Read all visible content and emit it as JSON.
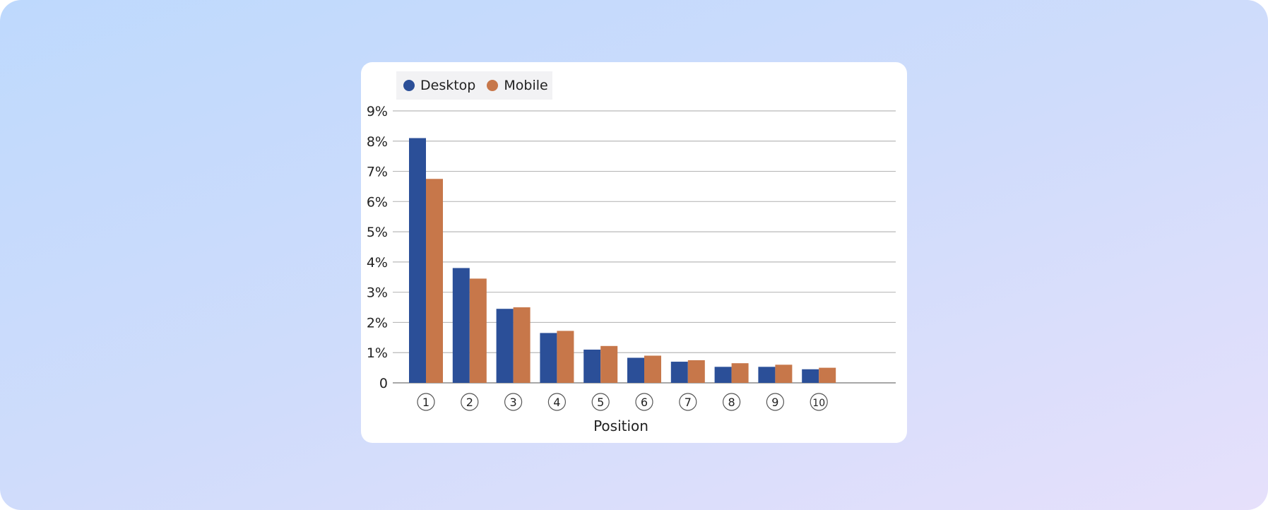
{
  "chart_data": {
    "type": "bar",
    "title": "",
    "xlabel": "Position",
    "ylabel": "",
    "categories": [
      "1",
      "2",
      "3",
      "4",
      "5",
      "6",
      "7",
      "8",
      "9",
      "10"
    ],
    "series": [
      {
        "name": "Desktop",
        "color": "#2b4f98",
        "values": [
          8.1,
          3.8,
          2.45,
          1.65,
          1.1,
          0.83,
          0.7,
          0.53,
          0.53,
          0.45
        ]
      },
      {
        "name": "Mobile",
        "color": "#c7774a",
        "values": [
          6.75,
          3.45,
          2.5,
          1.72,
          1.22,
          0.9,
          0.75,
          0.65,
          0.6,
          0.5
        ]
      }
    ],
    "y_ticks": [
      "0",
      "1%",
      "2%",
      "3%",
      "4%",
      "5%",
      "6%",
      "7%",
      "8%",
      "9%"
    ],
    "ylim": [
      0,
      9
    ],
    "grid": true,
    "legend_position": "top-left"
  }
}
